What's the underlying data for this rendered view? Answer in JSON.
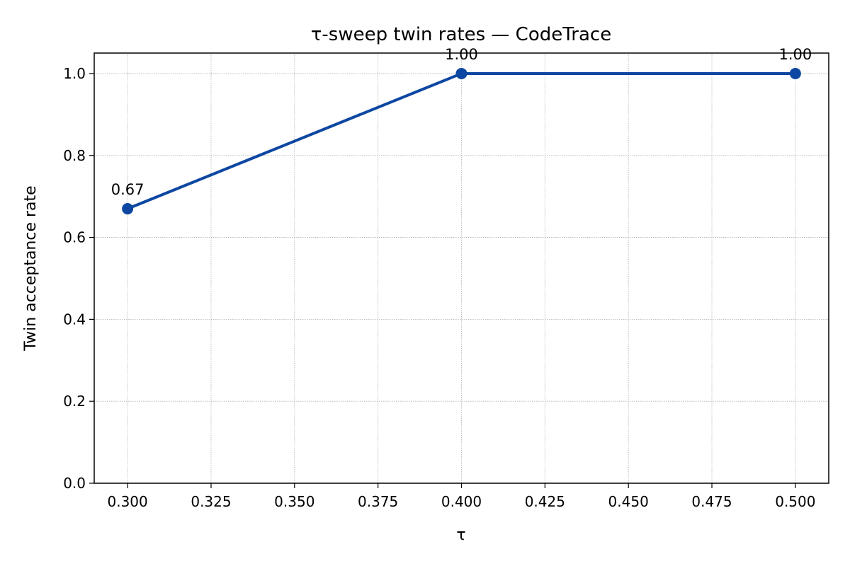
{
  "chart_data": {
    "type": "line",
    "title": "τ-sweep twin rates — CodeTrace",
    "xlabel": "τ",
    "ylabel": "Twin acceptance rate",
    "xlim": [
      0.29,
      0.51
    ],
    "ylim": [
      0.0,
      1.05
    ],
    "xticks": [
      "0.300",
      "0.325",
      "0.350",
      "0.375",
      "0.400",
      "0.425",
      "0.450",
      "0.475",
      "0.500"
    ],
    "yticks": [
      "0.0",
      "0.2",
      "0.4",
      "0.6",
      "0.8",
      "1.0"
    ],
    "grid": true,
    "series": [
      {
        "color": "#0d47a1",
        "x": [
          0.3,
          0.4,
          0.5
        ],
        "y": [
          0.67,
          1.0,
          1.0
        ],
        "labels": [
          "0.67",
          "1.00",
          "1.00"
        ]
      }
    ]
  }
}
